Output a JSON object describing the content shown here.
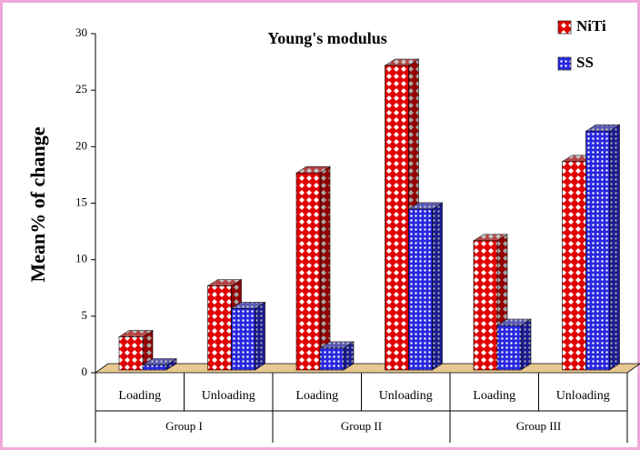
{
  "chart_data": {
    "type": "bar3d",
    "title": "Young's modulus",
    "ylabel": "Mean% of change",
    "categories": [
      "Loading",
      "Unloading",
      "Loading",
      "Unloading",
      "Loading",
      "Unloading"
    ],
    "groups": [
      "Group I",
      "Group II",
      "Group III"
    ],
    "series": [
      {
        "name": "NiTi",
        "color": "#e00000",
        "values": [
          3.5,
          8,
          18,
          27.5,
          12,
          19
        ]
      },
      {
        "name": "SS",
        "color": "#2828e0",
        "values": [
          1,
          6,
          2.5,
          14.8,
          4.5,
          21.7
        ]
      }
    ],
    "ylim": [
      0,
      30
    ],
    "yticks": [
      0,
      5,
      10,
      15,
      20,
      25,
      30
    ],
    "legend": "top-right"
  }
}
